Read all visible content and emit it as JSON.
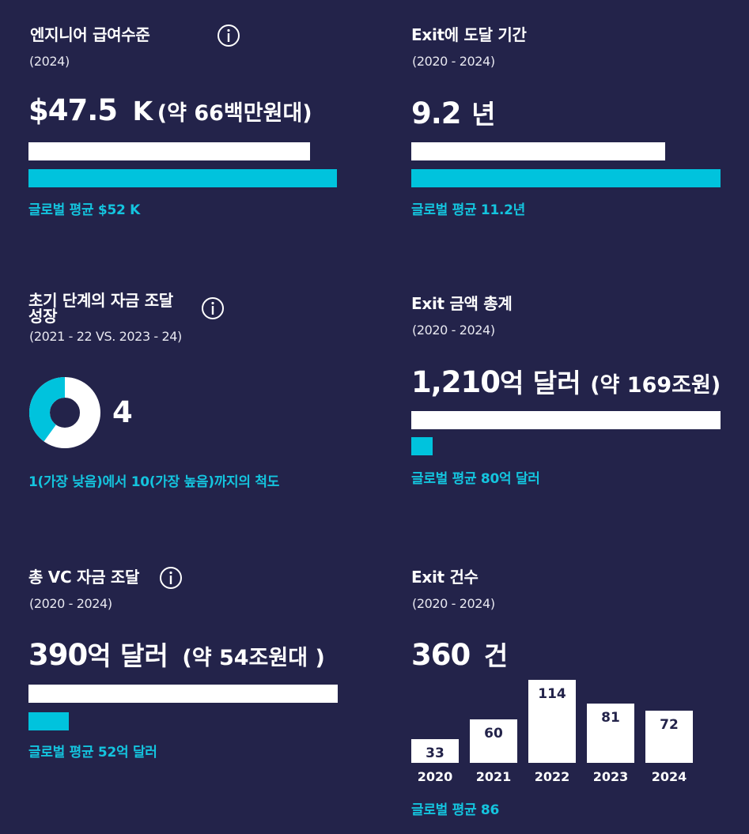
{
  "colors": {
    "background": "#23234a",
    "accent": "#00c3dd",
    "bar": "#ffffff"
  },
  "salary": {
    "title": "엔지니어 급여수준",
    "period": "(2024)",
    "value": "$47.5",
    "unit": "K",
    "note": "(약 66백만원대)",
    "global_avg_label": "글로벌 평균 $52 K",
    "icon": "info-icon"
  },
  "exit_time": {
    "title": "Exit에 도달 기간",
    "period": "(2020 - 2024)",
    "value": "9.2",
    "unit": "년",
    "global_avg_label": "글로벌 평균 11.2년"
  },
  "early_funding": {
    "title_line1": "초기 단계의 자금 조달",
    "title_line2": "성장",
    "period": "(2021 - 22 VS. 2023 - 24)",
    "value": "4",
    "scale_note": "1(가장 낮음)에서 10(가장 높음)까지의 척도",
    "icon": "info-icon"
  },
  "exit_total": {
    "title": "Exit 금액 총계",
    "period": "(2020 - 2024)",
    "value": "1,210",
    "unit": "억 달러",
    "note": "(약 169조원)",
    "global_avg_label": "글로벌 평균 80억 달러"
  },
  "vc_total": {
    "title": "총 VC 자금 조달",
    "period": "(2020 - 2024)",
    "value": "390",
    "unit": "억 달러",
    "note": "(약 54조원대 )",
    "global_avg_label": "글로벌 평균 52억 달러",
    "icon": "info-icon"
  },
  "exit_count": {
    "title": "Exit 건수",
    "period": "(2020 - 2024)",
    "value": "360",
    "unit": "건",
    "global_avg_label": "글로벌 평균 86"
  },
  "chart_data": [
    {
      "type": "bar",
      "orientation": "horizontal",
      "categories": [
        "value",
        "global average"
      ],
      "values": [
        47.5,
        52
      ]
    },
    {
      "type": "bar",
      "orientation": "horizontal",
      "categories": [
        "value",
        "global average"
      ],
      "values": [
        9.2,
        11.2
      ]
    },
    {
      "type": "pie",
      "values": [
        4,
        6
      ]
    },
    {
      "type": "bar",
      "orientation": "horizontal",
      "categories": [
        "value",
        "global average"
      ],
      "values": [
        1210,
        80
      ]
    },
    {
      "type": "bar",
      "orientation": "horizontal",
      "categories": [
        "value",
        "global average"
      ],
      "values": [
        390,
        52
      ]
    },
    {
      "type": "bar",
      "categories": [
        "2020",
        "2021",
        "2022",
        "2023",
        "2024"
      ],
      "values": [
        33,
        60,
        114,
        81,
        72
      ]
    }
  ]
}
